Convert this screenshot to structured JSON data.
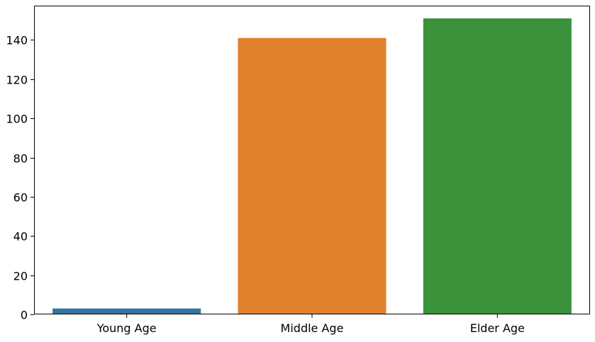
{
  "chart_data": {
    "type": "bar",
    "title": "",
    "xlabel": "",
    "ylabel": "",
    "categories": [
      "Young Age",
      "Middle Age",
      "Elder Age"
    ],
    "values": [
      3,
      141,
      151
    ],
    "colors": [
      "#3274a1",
      "#e1812c",
      "#3a923a"
    ],
    "ylim": [
      0,
      157.5
    ],
    "yticks": [
      0,
      20,
      40,
      60,
      80,
      100,
      120,
      140
    ],
    "grid": false,
    "legend": "none"
  }
}
